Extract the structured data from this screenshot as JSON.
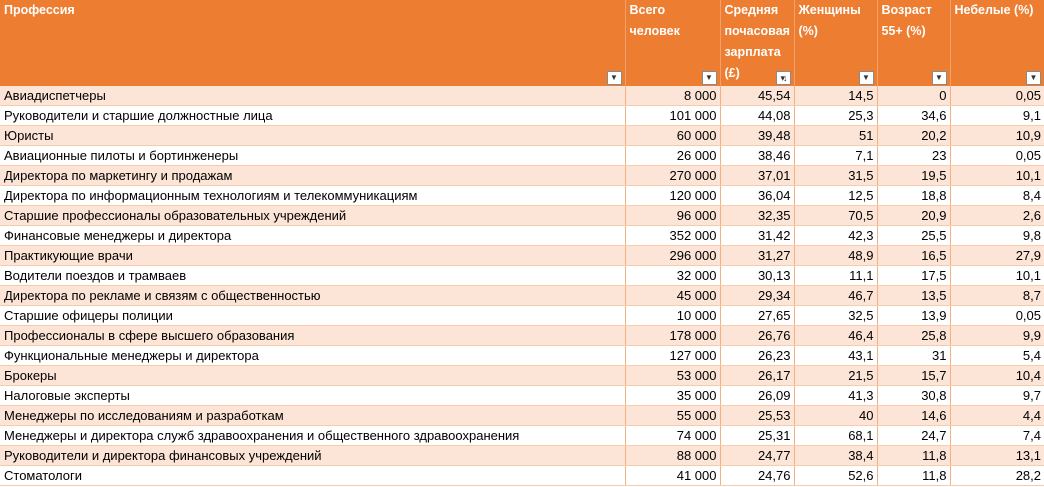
{
  "table": {
    "headers": [
      {
        "label": "Профессия",
        "filter_icon": "dropdown-arrow-icon"
      },
      {
        "label": "Всего человек",
        "filter_icon": "dropdown-arrow-icon"
      },
      {
        "label": "Средняя почасовая зарплата (£)",
        "filter_icon": "sort-descending-icon"
      },
      {
        "label": "Женщины (%)",
        "filter_icon": "dropdown-arrow-icon"
      },
      {
        "label": "Возраст 55+ (%)",
        "filter_icon": "dropdown-arrow-icon"
      },
      {
        "label": "Небелые (%)",
        "filter_icon": "dropdown-arrow-icon"
      }
    ],
    "rows": [
      [
        "Авиадиспетчеры",
        "8 000",
        "45,54",
        "14,5",
        "0",
        "0,05"
      ],
      [
        "Руководители и старшие должностные лица",
        "101 000",
        "44,08",
        "25,3",
        "34,6",
        "9,1"
      ],
      [
        "Юристы",
        "60 000",
        "39,48",
        "51",
        "20,2",
        "10,9"
      ],
      [
        "Авиационные пилоты и бортинженеры",
        "26 000",
        "38,46",
        "7,1",
        "23",
        "0,05"
      ],
      [
        "Директора по маркетингу и продажам",
        "270 000",
        "37,01",
        "31,5",
        "19,5",
        "10,1"
      ],
      [
        "Директора по информационным технологиям и телекоммуникациям",
        "120 000",
        "36,04",
        "12,5",
        "18,8",
        "8,4"
      ],
      [
        "Старшие профессионалы образовательных учреждений",
        "96 000",
        "32,35",
        "70,5",
        "20,9",
        "2,6"
      ],
      [
        "Финансовые менеджеры и директора",
        "352 000",
        "31,42",
        "42,3",
        "25,5",
        "9,8"
      ],
      [
        "Практикующие врачи",
        "296 000",
        "31,27",
        "48,9",
        "16,5",
        "27,9"
      ],
      [
        "Водители поездов и трамваев",
        "32 000",
        "30,13",
        "11,1",
        "17,5",
        "10,1"
      ],
      [
        "Директора по рекламе и связям с общественностью",
        "45 000",
        "29,34",
        "46,7",
        "13,5",
        "8,7"
      ],
      [
        "Старшие офицеры полиции",
        "10 000",
        "27,65",
        "32,5",
        "13,9",
        "0,05"
      ],
      [
        "Профессионалы в сфере высшего образования",
        "178 000",
        "26,76",
        "46,4",
        "25,8",
        "9,9"
      ],
      [
        "Функциональные менеджеры и директора",
        "127 000",
        "26,23",
        "43,1",
        "31",
        "5,4"
      ],
      [
        "Брокеры",
        "53 000",
        "26,17",
        "21,5",
        "15,7",
        "10,4"
      ],
      [
        "Налоговые эксперты",
        "35 000",
        "26,09",
        "41,3",
        "30,8",
        "9,7"
      ],
      [
        "Менеджеры по исследованиям и разработкам",
        "55 000",
        "25,53",
        "40",
        "14,6",
        "4,4"
      ],
      [
        "Менеджеры и директора служб здравоохранения и общественного здравоохранения",
        "74 000",
        "25,31",
        "68,1",
        "24,7",
        "7,4"
      ],
      [
        "Руководители и директора финансовых учреждений",
        "88 000",
        "24,77",
        "38,4",
        "11,8",
        "13,1"
      ],
      [
        "Стоматологи",
        "41 000",
        "24,76",
        "52,6",
        "11,8",
        "28,2"
      ]
    ]
  }
}
